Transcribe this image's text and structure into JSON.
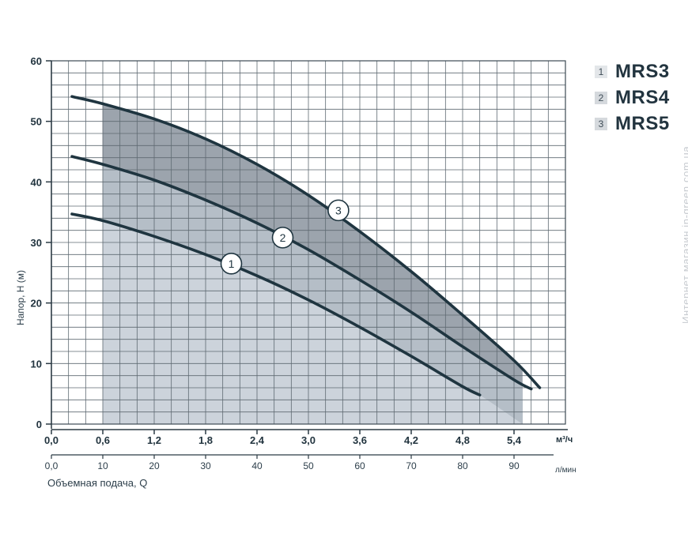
{
  "chart_data": {
    "type": "line",
    "ylabel": "Напор, H (м)",
    "xlabel": "Объемная подача, Q",
    "x_unit": "м³/ч",
    "x2_unit": "л/мин",
    "ylim": [
      0,
      60
    ],
    "xlim": [
      0,
      6.0
    ],
    "x2lim": [
      0,
      100
    ],
    "grid": true,
    "yticks": [
      "0",
      "10",
      "20",
      "30",
      "40",
      "50",
      "60"
    ],
    "xticks": [
      "0,0",
      "0,6",
      "1,2",
      "1,8",
      "2,4",
      "3,0",
      "3,6",
      "4,2",
      "4,8",
      "5,4"
    ],
    "x2ticks": [
      "0,0",
      "10",
      "20",
      "30",
      "40",
      "50",
      "60",
      "70",
      "80",
      "90"
    ],
    "work_range": [
      0.6,
      5.5
    ],
    "series": [
      {
        "name": "MRS3",
        "marker": "1",
        "marker_at": [
          2.1,
          26.5
        ],
        "x": [
          0.24,
          0.6,
          1.2,
          1.8,
          2.4,
          3.0,
          3.6,
          4.2,
          4.8,
          5.0
        ],
        "y": [
          34.7,
          33.6,
          31.0,
          28.0,
          24.5,
          20.5,
          16.0,
          11.2,
          6.2,
          4.8
        ]
      },
      {
        "name": "MRS4",
        "marker": "2",
        "marker_at": [
          2.7,
          30.8
        ],
        "x": [
          0.24,
          0.6,
          1.2,
          1.8,
          2.4,
          3.0,
          3.6,
          4.2,
          4.8,
          5.4,
          5.6
        ],
        "y": [
          44.2,
          42.9,
          40.3,
          37.0,
          33.2,
          28.8,
          23.8,
          18.5,
          12.8,
          7.3,
          5.8
        ]
      },
      {
        "name": "MRS5",
        "marker": "3",
        "marker_at": [
          3.35,
          35.3
        ],
        "x": [
          0.24,
          0.6,
          1.2,
          1.8,
          2.4,
          3.0,
          3.6,
          4.2,
          4.8,
          5.4,
          5.7
        ],
        "y": [
          54.1,
          52.9,
          50.4,
          47.1,
          42.9,
          37.8,
          31.8,
          25.2,
          18.0,
          10.5,
          6.0
        ]
      }
    ]
  },
  "legend": [
    {
      "num": "1",
      "name": "MRS3",
      "color": "#e3e6e9"
    },
    {
      "num": "2",
      "name": "MRS4",
      "color": "#d5d9dd"
    },
    {
      "num": "3",
      "name": "MRS5",
      "color": "#d5d9dd"
    }
  ],
  "watermark": "Интернет магазин  in-green.com.ua",
  "colors": {
    "curve": "#1f3540",
    "grid": "#5f6a72",
    "fill_light": "#ccd3db",
    "fill_mid": "#b5bec7",
    "fill_dark": "#9ca4ad"
  }
}
